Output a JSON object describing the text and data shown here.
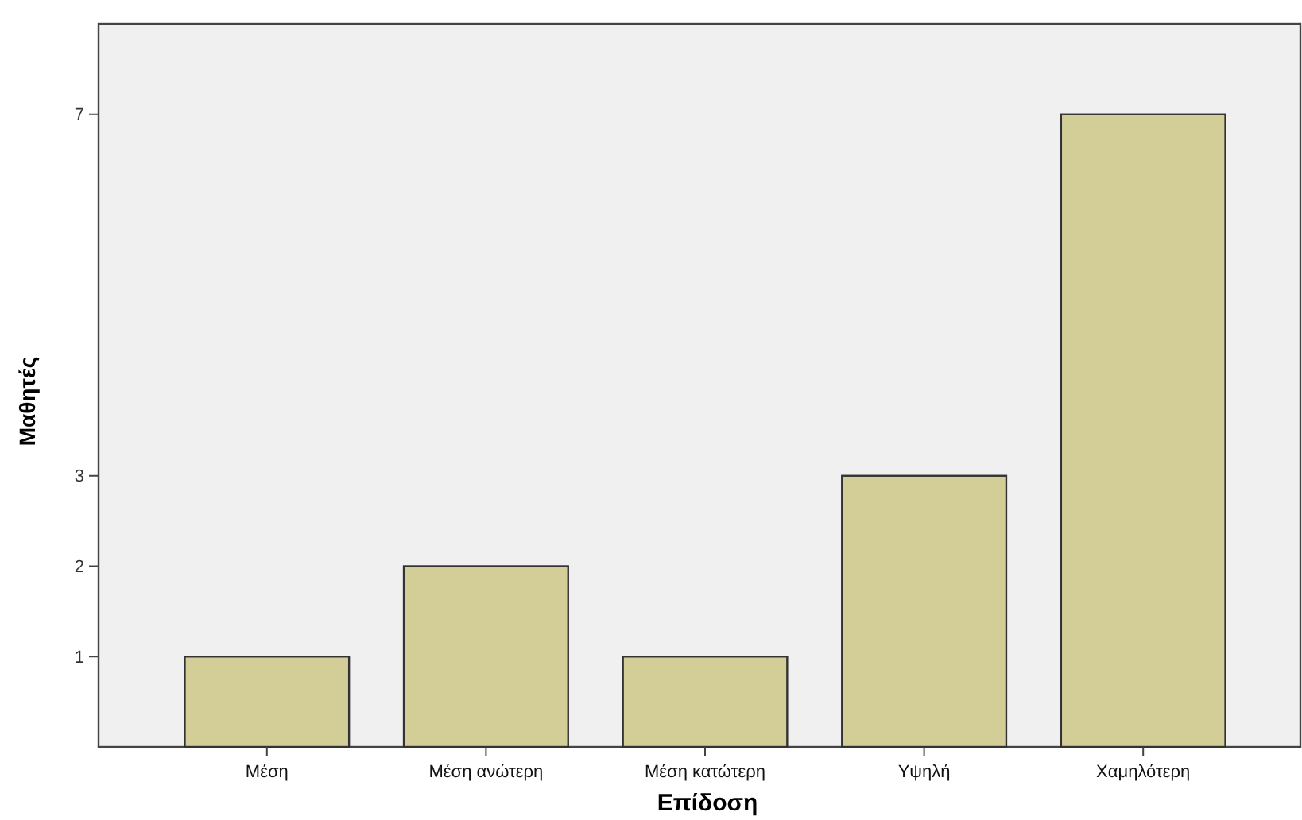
{
  "chart_data": {
    "type": "bar",
    "xlabel": "Επίδοση",
    "ylabel": "Μαθητές",
    "categories": [
      "Μέση",
      "Μέση ανώτερη",
      "Μέση κατώτερη",
      "Υψηλή",
      "Χαμηλότερη"
    ],
    "values": [
      1,
      2,
      1,
      3,
      7
    ],
    "color": "#d3ce97",
    "ylim": [
      0,
      8
    ],
    "yticks": [
      1,
      2,
      3,
      7
    ],
    "grid": false
  }
}
